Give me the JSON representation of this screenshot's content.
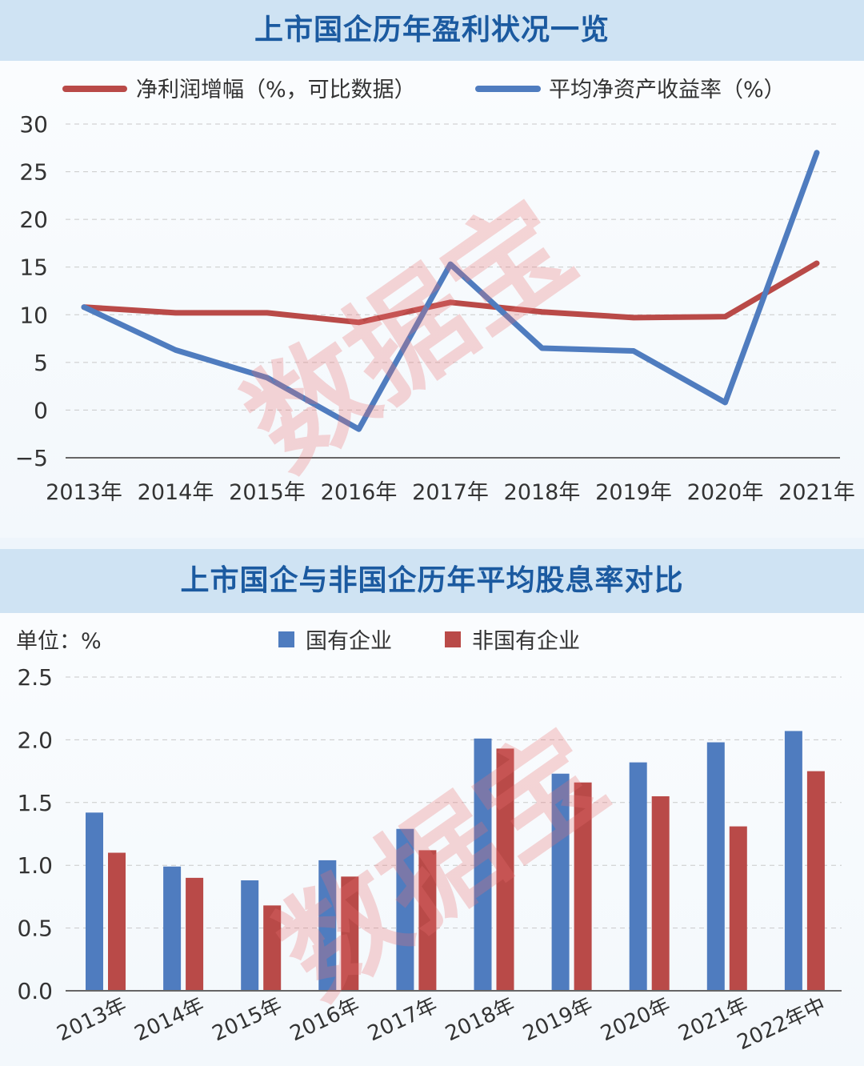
{
  "watermark": "数据宝",
  "chart_data": [
    {
      "type": "line",
      "title": "上市国企历年盈利状况一览",
      "x": [
        "2013年",
        "2014年",
        "2015年",
        "2016年",
        "2017年",
        "2018年",
        "2019年",
        "2020年",
        "2021年"
      ],
      "ylim": [
        -5,
        30
      ],
      "yticks": [
        "30",
        "25",
        "20",
        "15",
        "10",
        "5",
        "0",
        "−5"
      ],
      "grid": true,
      "legend_position": "top",
      "series": [
        {
          "name": "净利润增幅（%，可比数据）",
          "color": "#b94a48",
          "values": [
            10.8,
            10.2,
            10.2,
            9.2,
            11.3,
            10.3,
            9.7,
            9.8,
            15.4
          ]
        },
        {
          "name": "平均净资产收益率（%）",
          "color": "#4f7cbf",
          "values": [
            10.8,
            6.3,
            3.4,
            -2.0,
            15.3,
            6.5,
            6.2,
            0.8,
            27.0
          ]
        }
      ]
    },
    {
      "type": "bar",
      "title": "上市国企与非国企历年平均股息率对比",
      "unit_label": "单位：%",
      "categories": [
        "2013年",
        "2014年",
        "2015年",
        "2016年",
        "2017年",
        "2018年",
        "2019年",
        "2020年",
        "2021年",
        "2022年中"
      ],
      "ylim": [
        0,
        2.5
      ],
      "yticks": [
        "2.5",
        "2.0",
        "1.5",
        "1.0",
        "0.5",
        "0.0"
      ],
      "grid": true,
      "legend_position": "top",
      "series": [
        {
          "name": "国有企业",
          "color": "#4f7cbf",
          "values": [
            1.42,
            0.99,
            0.88,
            1.04,
            1.29,
            2.01,
            1.73,
            1.82,
            1.98,
            2.07
          ]
        },
        {
          "name": "非国有企业",
          "color": "#b94a48",
          "values": [
            1.1,
            0.9,
            0.68,
            0.91,
            1.12,
            1.93,
            1.66,
            1.55,
            1.31,
            1.75
          ]
        }
      ]
    }
  ]
}
